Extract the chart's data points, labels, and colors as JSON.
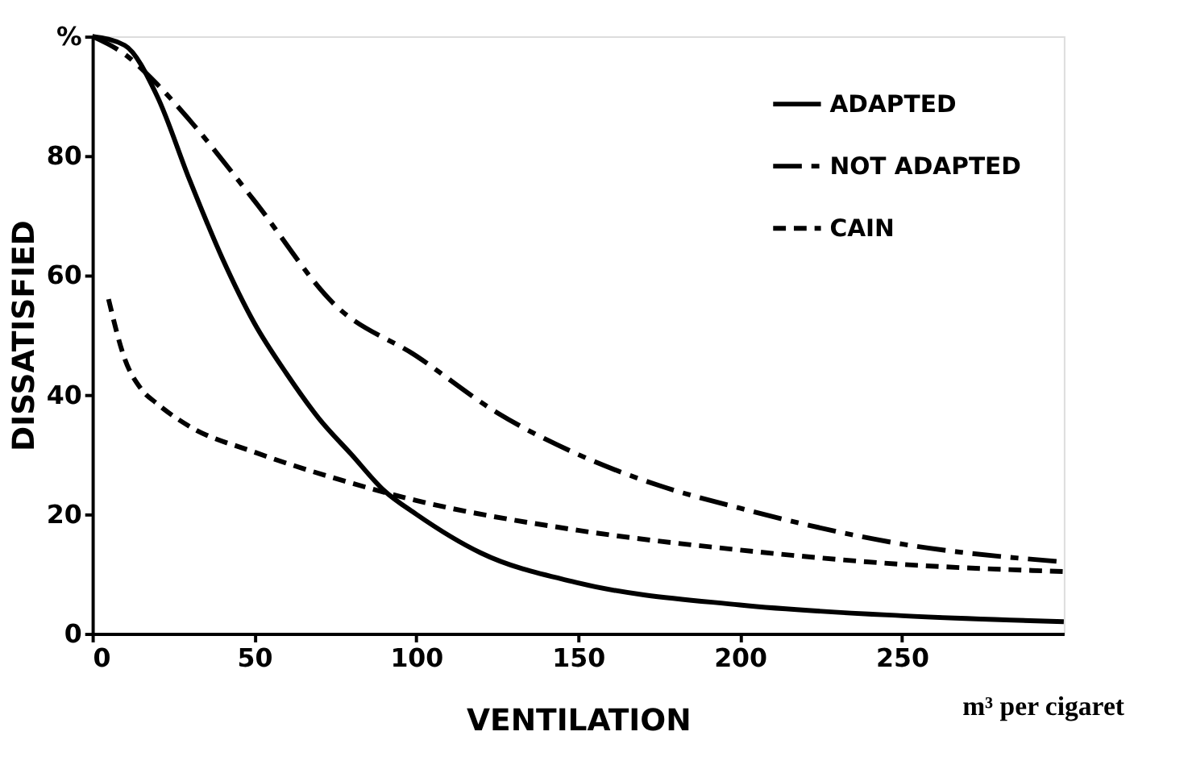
{
  "chart_data": {
    "type": "line",
    "xlabel": "VENTILATION",
    "ylabel": "DISSATISFIED",
    "annotations": [
      "m³ per cigaret"
    ],
    "xlim": [
      0,
      300
    ],
    "xticks": [
      0,
      50,
      100,
      150,
      200,
      250
    ],
    "ylim": [
      0,
      100
    ],
    "yticks": [
      0,
      20,
      40,
      60,
      80,
      {
        "value": 100,
        "label": "%"
      }
    ],
    "grid": false,
    "legend": "top right",
    "marker": "none",
    "series": [
      {
        "name": "ADAPTED",
        "color": "#000000",
        "line_style": "solid",
        "x": [
          0,
          10,
          20,
          30,
          40,
          50,
          60,
          70,
          80,
          90,
          100,
          120,
          150,
          200,
          250,
          300
        ],
        "values": [
          100,
          98.5,
          90,
          76,
          63,
          52,
          43.5,
          36,
          30,
          24,
          20,
          13.5,
          8.5,
          4.8,
          3,
          2
        ]
      },
      {
        "name": "NOT ADAPTED",
        "color": "#000000",
        "line_style": "dashdot",
        "x": [
          0,
          10,
          20,
          30,
          50,
          75,
          100,
          125,
          150,
          175,
          200,
          250,
          300
        ],
        "values": [
          100,
          97,
          92,
          86,
          72.5,
          55,
          46.5,
          37,
          30,
          24.8,
          21,
          15,
          12
        ]
      },
      {
        "name": "CAIN",
        "color": "#000000",
        "line_style": "dashed",
        "x": [
          5,
          10,
          15,
          20,
          30,
          50,
          75,
          100,
          150,
          200,
          250,
          300
        ],
        "values": [
          56,
          46,
          41,
          38.5,
          34.7,
          30.4,
          26,
          22.3,
          17.3,
          14,
          11.6,
          10.4
        ]
      }
    ]
  }
}
